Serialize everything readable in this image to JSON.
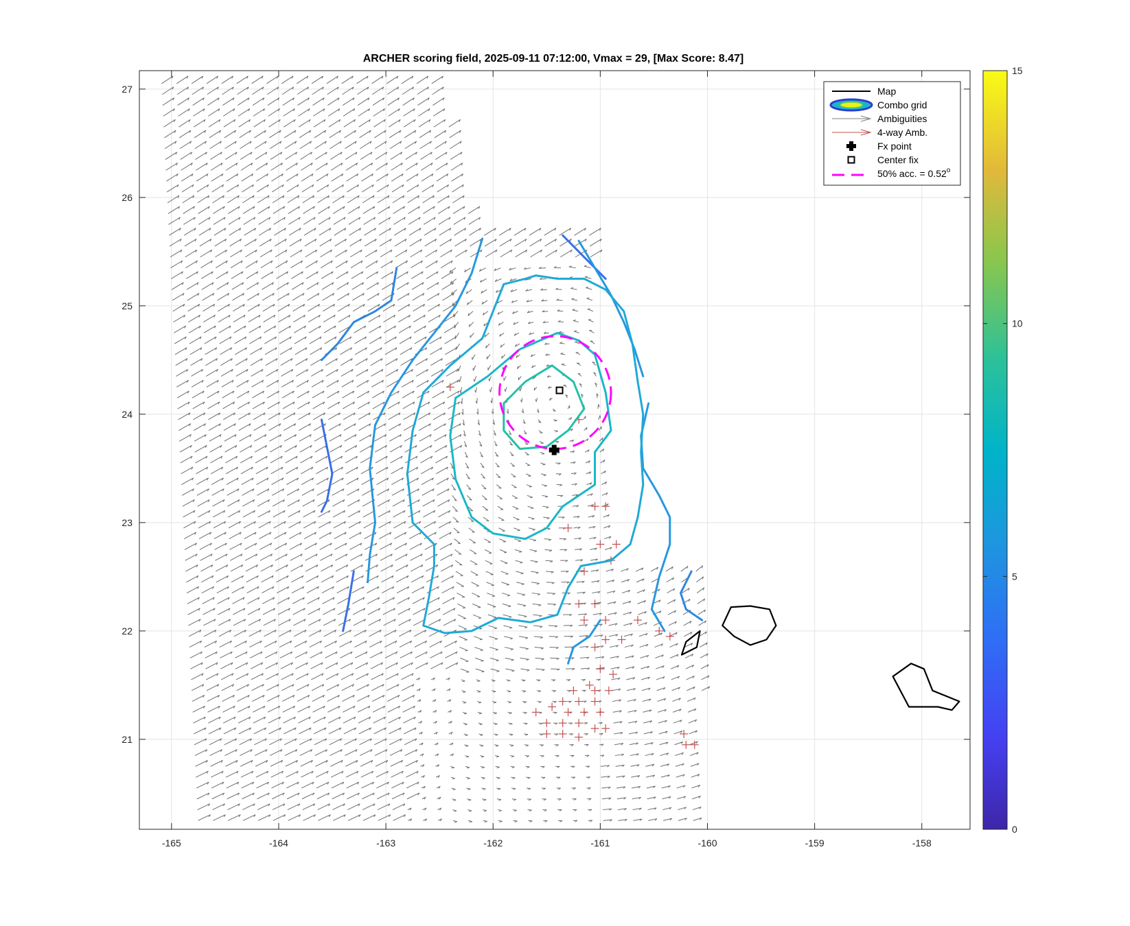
{
  "chart_data": {
    "type": "map",
    "title": "ARCHER scoring field, 2025-09-11 07:12:00, Vmax = 29, [Max Score: 8.47]",
    "x_ticks": [
      "-165",
      "-164",
      "-163",
      "-162",
      "-161",
      "-160",
      "-159",
      "-158"
    ],
    "y_ticks": [
      "21",
      "22",
      "23",
      "24",
      "25",
      "26",
      "27"
    ],
    "xlim": [
      -165.3,
      -157.55
    ],
    "ylim": [
      20.17,
      27.17
    ],
    "grid": true,
    "colorbar": {
      "ticks": [
        "0",
        "5",
        "10",
        "15"
      ],
      "range": [
        0,
        15
      ],
      "colormap": "parula"
    },
    "legend": {
      "placement": "top-right",
      "entries": [
        {
          "label": "Map",
          "symbol": "line",
          "color": "#000000"
        },
        {
          "label": "Combo grid",
          "symbol": "contour",
          "color": "#2a3fd0"
        },
        {
          "label": "Ambiguities",
          "symbol": "arrow",
          "color": "#808080"
        },
        {
          "label": "4-way Amb.",
          "symbol": "arrow",
          "color": "#c0504d"
        },
        {
          "label": "Fx point",
          "symbol": "plus-filled",
          "color": "#000000"
        },
        {
          "label": "Center fix",
          "symbol": "square",
          "color": "#000000"
        },
        {
          "label": "50% acc. = 0.52",
          "superscript": "o",
          "symbol": "dashed",
          "color": "#ff00ff"
        }
      ]
    },
    "fx_point": {
      "lon": -161.43,
      "lat": 23.67
    },
    "center_fix": {
      "lon": -161.38,
      "lat": 24.22
    },
    "acc_circle": {
      "lon": -161.42,
      "lat": 24.2,
      "radius_deg": 0.52,
      "color": "#ff00ff"
    },
    "contours": [
      {
        "level": 4.5,
        "color": "#3a6fe6",
        "points": [
          [
            -161.35,
            25.65
          ],
          [
            -161.15,
            25.45
          ],
          [
            -160.95,
            25.25
          ]
        ]
      },
      {
        "level": 4.5,
        "color": "#3a6fe6",
        "points": [
          [
            -163.6,
            23.95
          ],
          [
            -163.55,
            23.7
          ],
          [
            -163.5,
            23.45
          ],
          [
            -163.55,
            23.2
          ],
          [
            -163.6,
            23.1
          ]
        ]
      },
      {
        "level": 4.5,
        "color": "#3a6fe6",
        "points": [
          [
            -163.3,
            22.55
          ],
          [
            -163.35,
            22.25
          ],
          [
            -163.4,
            22.0
          ]
        ]
      },
      {
        "level": 5.2,
        "color": "#2f86e0",
        "points": [
          [
            -162.9,
            25.35
          ],
          [
            -162.95,
            25.05
          ],
          [
            -163.1,
            24.95
          ],
          [
            -163.3,
            24.85
          ],
          [
            -163.45,
            24.65
          ],
          [
            -163.6,
            24.5
          ]
        ]
      },
      {
        "level": 5.2,
        "color": "#2f86e0",
        "points": [
          [
            -160.15,
            22.55
          ],
          [
            -160.25,
            22.35
          ],
          [
            -160.2,
            22.2
          ],
          [
            -160.05,
            22.1
          ]
        ]
      },
      {
        "level": 5.6,
        "color": "#2797e0",
        "points": [
          [
            -162.1,
            25.62
          ],
          [
            -162.2,
            25.3
          ],
          [
            -162.35,
            25.0
          ],
          [
            -162.55,
            24.75
          ],
          [
            -162.75,
            24.5
          ],
          [
            -162.95,
            24.2
          ],
          [
            -163.1,
            23.9
          ],
          [
            -163.15,
            23.5
          ],
          [
            -163.1,
            23.0
          ],
          [
            -163.15,
            22.7
          ],
          [
            -163.17,
            22.45
          ]
        ]
      },
      {
        "level": 5.6,
        "color": "#2797e0",
        "points": [
          [
            -161.2,
            25.6
          ],
          [
            -161.05,
            25.35
          ],
          [
            -160.9,
            25.1
          ],
          [
            -160.78,
            24.85
          ],
          [
            -160.68,
            24.6
          ],
          [
            -160.6,
            24.35
          ]
        ]
      },
      {
        "level": 5.6,
        "color": "#2797e0",
        "points": [
          [
            -160.55,
            24.1
          ],
          [
            -160.62,
            23.8
          ],
          [
            -160.6,
            23.5
          ],
          [
            -160.45,
            23.25
          ],
          [
            -160.35,
            23.05
          ],
          [
            -160.35,
            22.8
          ],
          [
            -160.45,
            22.5
          ],
          [
            -160.52,
            22.2
          ],
          [
            -160.4,
            22.0
          ]
        ]
      },
      {
        "level": 5.6,
        "color": "#2797e0",
        "points": [
          [
            -161.0,
            22.1
          ],
          [
            -161.1,
            21.95
          ],
          [
            -161.25,
            21.85
          ],
          [
            -161.3,
            21.7
          ]
        ]
      },
      {
        "level": 6.4,
        "color": "#1fa9d6",
        "points": [
          [
            -161.7,
            25.25
          ],
          [
            -161.9,
            25.2
          ],
          [
            -162.0,
            24.95
          ],
          [
            -162.1,
            24.7
          ],
          [
            -162.4,
            24.45
          ],
          [
            -162.65,
            24.2
          ],
          [
            -162.75,
            23.85
          ],
          [
            -162.8,
            23.45
          ],
          [
            -162.75,
            23.0
          ],
          [
            -162.55,
            22.8
          ],
          [
            -162.55,
            22.6
          ],
          [
            -162.6,
            22.3
          ],
          [
            -162.65,
            22.05
          ],
          [
            -162.45,
            21.98
          ],
          [
            -162.2,
            22.0
          ],
          [
            -161.95,
            22.12
          ],
          [
            -161.65,
            22.08
          ],
          [
            -161.4,
            22.15
          ],
          [
            -161.3,
            22.4
          ],
          [
            -161.18,
            22.6
          ],
          [
            -160.9,
            22.65
          ],
          [
            -160.72,
            22.8
          ],
          [
            -160.65,
            23.05
          ],
          [
            -160.6,
            23.35
          ],
          [
            -160.62,
            23.65
          ],
          [
            -160.6,
            24.0
          ],
          [
            -160.65,
            24.3
          ],
          [
            -160.7,
            24.65
          ],
          [
            -160.78,
            24.95
          ],
          [
            -160.95,
            25.15
          ],
          [
            -161.15,
            25.25
          ],
          [
            -161.4,
            25.25
          ],
          [
            -161.6,
            25.28
          ],
          [
            -161.7,
            25.25
          ]
        ]
      },
      {
        "level": 7.3,
        "color": "#1ab7c6",
        "points": [
          [
            -161.4,
            24.75
          ],
          [
            -161.75,
            24.6
          ],
          [
            -162.05,
            24.35
          ],
          [
            -162.35,
            24.15
          ],
          [
            -162.4,
            23.8
          ],
          [
            -162.35,
            23.4
          ],
          [
            -162.2,
            23.05
          ],
          [
            -162.0,
            22.9
          ],
          [
            -161.7,
            22.85
          ],
          [
            -161.5,
            22.95
          ],
          [
            -161.35,
            23.15
          ],
          [
            -161.05,
            23.35
          ],
          [
            -161.05,
            23.65
          ],
          [
            -160.9,
            23.85
          ],
          [
            -160.95,
            24.2
          ],
          [
            -161.05,
            24.55
          ],
          [
            -161.2,
            24.68
          ],
          [
            -161.4,
            24.75
          ]
        ]
      },
      {
        "level": 8.1,
        "color": "#22c1a7",
        "points": [
          [
            -161.45,
            24.45
          ],
          [
            -161.7,
            24.3
          ],
          [
            -161.9,
            24.1
          ],
          [
            -161.9,
            23.85
          ],
          [
            -161.75,
            23.68
          ],
          [
            -161.5,
            23.7
          ],
          [
            -161.3,
            23.85
          ],
          [
            -161.15,
            24.05
          ],
          [
            -161.25,
            24.3
          ],
          [
            -161.45,
            24.45
          ]
        ]
      }
    ],
    "islands": [
      {
        "name": "",
        "points": [
          [
            -159.78,
            22.22
          ],
          [
            -159.6,
            22.23
          ],
          [
            -159.42,
            22.2
          ],
          [
            -159.36,
            22.05
          ],
          [
            -159.45,
            21.92
          ],
          [
            -159.6,
            21.87
          ],
          [
            -159.75,
            21.95
          ],
          [
            -159.86,
            22.05
          ],
          [
            -159.78,
            22.22
          ]
        ]
      },
      {
        "name": "",
        "points": [
          [
            -160.07,
            22.0
          ],
          [
            -160.2,
            21.9
          ],
          [
            -160.24,
            21.78
          ],
          [
            -160.1,
            21.85
          ],
          [
            -160.07,
            22.0
          ]
        ]
      },
      {
        "name": "",
        "points": [
          [
            -158.27,
            21.58
          ],
          [
            -158.1,
            21.7
          ],
          [
            -157.98,
            21.65
          ],
          [
            -157.9,
            21.45
          ],
          [
            -157.65,
            21.35
          ],
          [
            -157.72,
            21.27
          ],
          [
            -157.85,
            21.3
          ],
          [
            -158.0,
            21.3
          ],
          [
            -158.12,
            21.3
          ],
          [
            -158.2,
            21.45
          ],
          [
            -158.27,
            21.58
          ]
        ]
      }
    ]
  }
}
